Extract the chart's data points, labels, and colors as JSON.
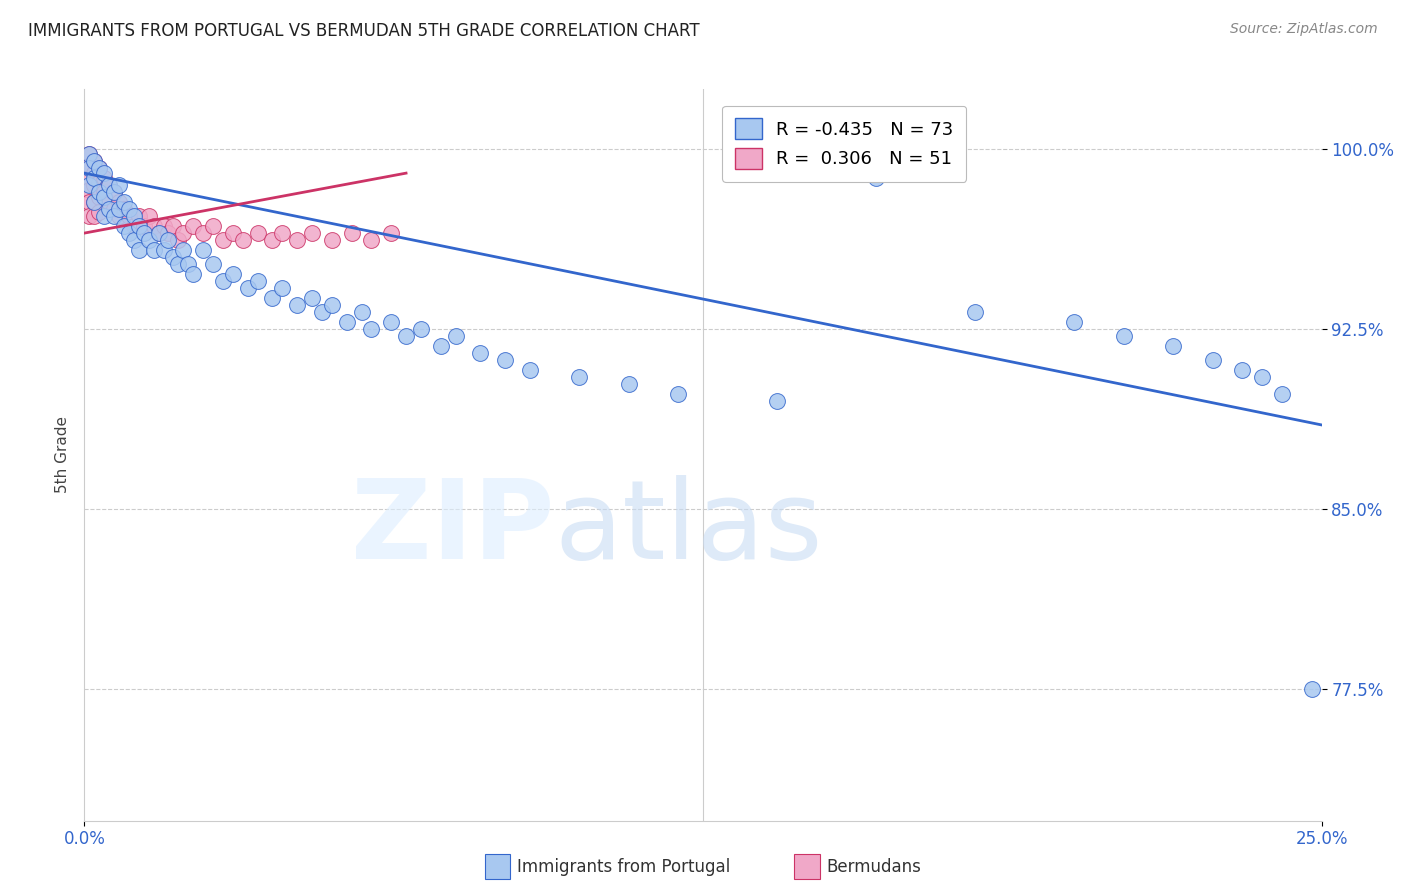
{
  "title": "IMMIGRANTS FROM PORTUGAL VS BERMUDAN 5TH GRADE CORRELATION CHART",
  "source": "Source: ZipAtlas.com",
  "ylabel": "5th Grade",
  "xlabel_ticks": [
    "0.0%",
    "25.0%"
  ],
  "ytick_labels": [
    "77.5%",
    "85.0%",
    "92.5%",
    "100.0%"
  ],
  "ytick_values": [
    0.775,
    0.85,
    0.925,
    1.0
  ],
  "xlim": [
    0.0,
    0.25
  ],
  "ylim": [
    0.72,
    1.025
  ],
  "blue_R": -0.435,
  "blue_N": 73,
  "pink_R": 0.306,
  "pink_N": 51,
  "blue_color": "#a8c8f0",
  "pink_color": "#f0a8c8",
  "blue_line_color": "#3366cc",
  "pink_line_color": "#cc3366",
  "blue_line_x": [
    0.0,
    0.25
  ],
  "blue_line_y": [
    0.99,
    0.885
  ],
  "pink_line_x": [
    0.0,
    0.065
  ],
  "pink_line_y": [
    0.965,
    0.99
  ],
  "blue_scatter_x": [
    0.001,
    0.001,
    0.001,
    0.002,
    0.002,
    0.002,
    0.003,
    0.003,
    0.004,
    0.004,
    0.004,
    0.005,
    0.005,
    0.006,
    0.006,
    0.007,
    0.007,
    0.008,
    0.008,
    0.009,
    0.009,
    0.01,
    0.01,
    0.011,
    0.011,
    0.012,
    0.013,
    0.014,
    0.015,
    0.016,
    0.017,
    0.018,
    0.019,
    0.02,
    0.021,
    0.022,
    0.024,
    0.026,
    0.028,
    0.03,
    0.033,
    0.035,
    0.038,
    0.04,
    0.043,
    0.046,
    0.048,
    0.05,
    0.053,
    0.056,
    0.058,
    0.062,
    0.065,
    0.068,
    0.072,
    0.075,
    0.08,
    0.085,
    0.09,
    0.1,
    0.11,
    0.12,
    0.14,
    0.16,
    0.18,
    0.2,
    0.21,
    0.22,
    0.228,
    0.234,
    0.238,
    0.242,
    0.248
  ],
  "blue_scatter_y": [
    0.998,
    0.992,
    0.985,
    0.995,
    0.988,
    0.978,
    0.992,
    0.982,
    0.99,
    0.98,
    0.972,
    0.985,
    0.975,
    0.982,
    0.972,
    0.985,
    0.975,
    0.978,
    0.968,
    0.975,
    0.965,
    0.972,
    0.962,
    0.968,
    0.958,
    0.965,
    0.962,
    0.958,
    0.965,
    0.958,
    0.962,
    0.955,
    0.952,
    0.958,
    0.952,
    0.948,
    0.958,
    0.952,
    0.945,
    0.948,
    0.942,
    0.945,
    0.938,
    0.942,
    0.935,
    0.938,
    0.932,
    0.935,
    0.928,
    0.932,
    0.925,
    0.928,
    0.922,
    0.925,
    0.918,
    0.922,
    0.915,
    0.912,
    0.908,
    0.905,
    0.902,
    0.898,
    0.895,
    0.988,
    0.932,
    0.928,
    0.922,
    0.918,
    0.912,
    0.908,
    0.905,
    0.898,
    0.775
  ],
  "pink_scatter_x": [
    0.001,
    0.001,
    0.001,
    0.001,
    0.001,
    0.001,
    0.002,
    0.002,
    0.002,
    0.002,
    0.002,
    0.003,
    0.003,
    0.003,
    0.003,
    0.004,
    0.004,
    0.005,
    0.005,
    0.006,
    0.006,
    0.007,
    0.007,
    0.008,
    0.009,
    0.01,
    0.011,
    0.012,
    0.013,
    0.014,
    0.015,
    0.016,
    0.017,
    0.018,
    0.019,
    0.02,
    0.022,
    0.024,
    0.026,
    0.028,
    0.03,
    0.032,
    0.035,
    0.038,
    0.04,
    0.043,
    0.046,
    0.05,
    0.054,
    0.058,
    0.062
  ],
  "pink_scatter_y": [
    0.998,
    0.993,
    0.988,
    0.983,
    0.978,
    0.972,
    0.995,
    0.99,
    0.985,
    0.978,
    0.972,
    0.992,
    0.986,
    0.98,
    0.974,
    0.988,
    0.982,
    0.985,
    0.978,
    0.982,
    0.975,
    0.978,
    0.972,
    0.975,
    0.972,
    0.968,
    0.972,
    0.968,
    0.972,
    0.968,
    0.965,
    0.968,
    0.965,
    0.968,
    0.962,
    0.965,
    0.968,
    0.965,
    0.968,
    0.962,
    0.965,
    0.962,
    0.965,
    0.962,
    0.965,
    0.962,
    0.965,
    0.962,
    0.965,
    0.962,
    0.965
  ]
}
